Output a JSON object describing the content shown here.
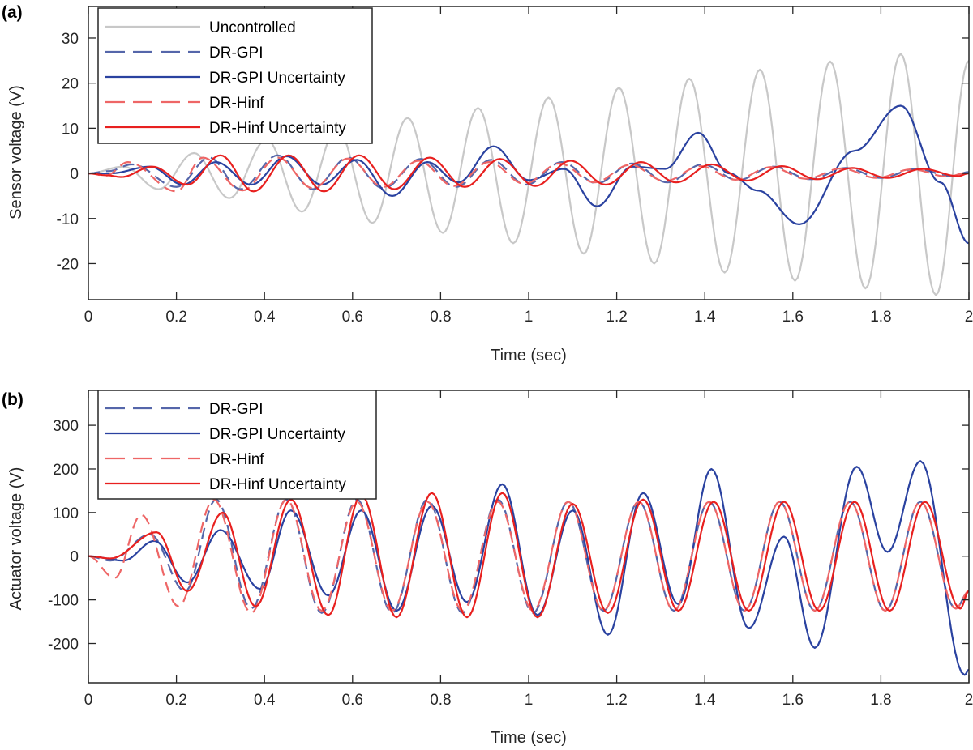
{
  "colors": {
    "uncontrolled": "#c8c8c8",
    "gpi": "#2a42a0",
    "gpi_dashed": "#5566aa",
    "hinf": "#e8201f",
    "hinf_dashed": "#ee6666",
    "axis": "#262626"
  },
  "chart_data": [
    {
      "panel_label": "(a)",
      "type": "line",
      "xlabel": "Time (sec)",
      "ylabel": "Sensor voltage (V)",
      "xlim": [
        0,
        2
      ],
      "ylim": [
        -28,
        37
      ],
      "xticks": [
        0,
        0.2,
        0.4,
        0.6,
        0.8,
        1,
        1.2,
        1.4,
        1.6,
        1.8,
        2
      ],
      "xtick_labels": [
        "0",
        "0.2",
        "0.4",
        "0.6",
        "0.8",
        "1",
        "1.2",
        "1.4",
        "1.6",
        "1.8",
        "2"
      ],
      "yticks": [
        -20,
        -10,
        0,
        10,
        20,
        30
      ],
      "ytick_labels": [
        "-20",
        "-10",
        "0",
        "10",
        "20",
        "30"
      ],
      "grid": false,
      "legend_placement": "top-left",
      "series": [
        {
          "name": "Uncontrolled",
          "style": "solid",
          "color_key": "uncontrolled",
          "peaks": [
            [
              0,
              0
            ],
            [
              0.08,
              1.5
            ],
            [
              0.16,
              -3.5
            ],
            [
              0.24,
              4.5
            ],
            [
              0.32,
              -5.5
            ],
            [
              0.405,
              7.5
            ],
            [
              0.485,
              -8.5
            ],
            [
              0.565,
              10
            ],
            [
              0.645,
              -11
            ],
            [
              0.725,
              12.3
            ],
            [
              0.805,
              -13.2
            ],
            [
              0.885,
              14.5
            ],
            [
              0.965,
              -15.5
            ],
            [
              1.045,
              16.8
            ],
            [
              1.125,
              -17.8
            ],
            [
              1.205,
              19
            ],
            [
              1.285,
              -20
            ],
            [
              1.365,
              21
            ],
            [
              1.445,
              -22
            ],
            [
              1.525,
              23
            ],
            [
              1.605,
              -23.8
            ],
            [
              1.685,
              24.8
            ],
            [
              1.765,
              -25.5
            ],
            [
              1.845,
              26.5
            ],
            [
              1.925,
              -27
            ],
            [
              2.0,
              25
            ]
          ]
        },
        {
          "name": "DR-GPI",
          "style": "dashed",
          "color_key": "gpi_dashed",
          "peaks": [
            [
              0,
              0
            ],
            [
              0.045,
              0.5
            ],
            [
              0.1,
              2
            ],
            [
              0.2,
              -3
            ],
            [
              0.275,
              3.5
            ],
            [
              0.345,
              -3.5
            ],
            [
              0.43,
              4
            ],
            [
              0.51,
              -3.5
            ],
            [
              0.59,
              3.5
            ],
            [
              0.67,
              -3.3
            ],
            [
              0.755,
              3.2
            ],
            [
              0.835,
              -3
            ],
            [
              0.915,
              3
            ],
            [
              0.995,
              -2.5
            ],
            [
              1.075,
              2.5
            ],
            [
              1.155,
              -2.2
            ],
            [
              1.235,
              2.2
            ],
            [
              1.315,
              -2
            ],
            [
              1.395,
              2
            ],
            [
              1.475,
              -1.5
            ],
            [
              1.555,
              1.5
            ],
            [
              1.64,
              -1.3
            ],
            [
              1.72,
              1.2
            ],
            [
              1.8,
              -1
            ],
            [
              1.88,
              1
            ],
            [
              1.96,
              -0.6
            ],
            [
              2.0,
              0.3
            ]
          ]
        },
        {
          "name": "DR-GPI Uncertainty",
          "style": "solid",
          "color_key": "gpi",
          "peaks": [
            [
              0,
              0
            ],
            [
              0.05,
              0
            ],
            [
              0.14,
              1.5
            ],
            [
              0.215,
              -2.5
            ],
            [
              0.29,
              2.5
            ],
            [
              0.37,
              -2.5
            ],
            [
              0.45,
              3.8
            ],
            [
              0.53,
              -2.5
            ],
            [
              0.61,
              3
            ],
            [
              0.69,
              -5
            ],
            [
              0.77,
              2.5
            ],
            [
              0.84,
              -2
            ],
            [
              0.92,
              6
            ],
            [
              1.0,
              -1.5
            ],
            [
              1.08,
              1
            ],
            [
              1.155,
              -7.3
            ],
            [
              1.235,
              1.5
            ],
            [
              1.31,
              1
            ],
            [
              1.385,
              9
            ],
            [
              1.455,
              0
            ],
            [
              1.52,
              -3.8
            ],
            [
              1.615,
              -11.3
            ],
            [
              1.74,
              5
            ],
            [
              1.845,
              15
            ],
            [
              1.935,
              -2
            ],
            [
              2.0,
              -15.5
            ]
          ]
        },
        {
          "name": "DR-Hinf",
          "style": "dashed",
          "color_key": "hinf_dashed",
          "peaks": [
            [
              0,
              0
            ],
            [
              0.04,
              -0.5
            ],
            [
              0.09,
              2.5
            ],
            [
              0.2,
              -4
            ],
            [
              0.26,
              3.5
            ],
            [
              0.35,
              -3.8
            ],
            [
              0.43,
              3.5
            ],
            [
              0.51,
              -3.3
            ],
            [
              0.59,
              3.3
            ],
            [
              0.67,
              -3
            ],
            [
              0.75,
              2.8
            ],
            [
              0.83,
              -2.8
            ],
            [
              0.91,
              2.5
            ],
            [
              0.99,
              -2.3
            ],
            [
              1.07,
              2.2
            ],
            [
              1.15,
              -2
            ],
            [
              1.23,
              1.9
            ],
            [
              1.31,
              -1.7
            ],
            [
              1.39,
              1.6
            ],
            [
              1.47,
              -1.4
            ],
            [
              1.55,
              1.4
            ],
            [
              1.63,
              -1.2
            ],
            [
              1.71,
              1.1
            ],
            [
              1.79,
              -1
            ],
            [
              1.87,
              0.9
            ],
            [
              1.95,
              -0.7
            ],
            [
              2.0,
              0.2
            ]
          ]
        },
        {
          "name": "DR-Hinf Uncertainty",
          "style": "solid",
          "color_key": "hinf",
          "peaks": [
            [
              0,
              0
            ],
            [
              0.04,
              -0.4
            ],
            [
              0.075,
              -0.8
            ],
            [
              0.145,
              1.5
            ],
            [
              0.225,
              -2.5
            ],
            [
              0.3,
              4
            ],
            [
              0.375,
              -4
            ],
            [
              0.455,
              4
            ],
            [
              0.535,
              -4
            ],
            [
              0.615,
              4
            ],
            [
              0.695,
              -3.5
            ],
            [
              0.775,
              3.5
            ],
            [
              0.855,
              -3
            ],
            [
              0.935,
              3.2
            ],
            [
              1.015,
              -2.8
            ],
            [
              1.095,
              2.8
            ],
            [
              1.175,
              -2.5
            ],
            [
              1.255,
              2.5
            ],
            [
              1.335,
              -2
            ],
            [
              1.415,
              2
            ],
            [
              1.495,
              -1.6
            ],
            [
              1.575,
              1.6
            ],
            [
              1.655,
              -1.3
            ],
            [
              1.735,
              1.2
            ],
            [
              1.815,
              -1
            ],
            [
              1.895,
              1
            ],
            [
              1.975,
              -0.6
            ],
            [
              2.0,
              0
            ]
          ]
        }
      ]
    },
    {
      "panel_label": "(b)",
      "type": "line",
      "xlabel": "Time (sec)",
      "ylabel": "Actuator voltage (V)",
      "xlim": [
        0,
        2
      ],
      "ylim": [
        -290,
        380
      ],
      "xticks": [
        0,
        0.2,
        0.4,
        0.6,
        0.8,
        1,
        1.2,
        1.4,
        1.6,
        1.8,
        2
      ],
      "xtick_labels": [
        "0",
        "0.2",
        "0.4",
        "0.6",
        "0.8",
        "1",
        "1.2",
        "1.4",
        "1.6",
        "1.8",
        "2"
      ],
      "yticks": [
        -200,
        -100,
        0,
        100,
        200,
        300
      ],
      "ytick_labels": [
        "-200",
        "-100",
        "0",
        "100",
        "200",
        "300"
      ],
      "grid": false,
      "legend_placement": "top-left",
      "series": [
        {
          "name": "DR-GPI",
          "style": "dashed",
          "color_key": "gpi_dashed",
          "peaks": [
            [
              0,
              0
            ],
            [
              0.05,
              -10
            ],
            [
              0.14,
              50
            ],
            [
              0.22,
              -80
            ],
            [
              0.29,
              130
            ],
            [
              0.37,
              -120
            ],
            [
              0.45,
              130
            ],
            [
              0.53,
              -130
            ],
            [
              0.61,
              130
            ],
            [
              0.69,
              -130
            ],
            [
              0.77,
              130
            ],
            [
              0.85,
              -130
            ],
            [
              0.93,
              130
            ],
            [
              1.01,
              -130
            ],
            [
              1.09,
              125
            ],
            [
              1.17,
              -125
            ],
            [
              1.25,
              125
            ],
            [
              1.33,
              -125
            ],
            [
              1.41,
              125
            ],
            [
              1.49,
              -125
            ],
            [
              1.57,
              125
            ],
            [
              1.65,
              -125
            ],
            [
              1.73,
              125
            ],
            [
              1.81,
              -125
            ],
            [
              1.89,
              125
            ],
            [
              1.97,
              -120
            ],
            [
              2.0,
              -80
            ]
          ]
        },
        {
          "name": "DR-GPI Uncertainty",
          "style": "solid",
          "color_key": "gpi",
          "peaks": [
            [
              0,
              0
            ],
            [
              0.08,
              -10
            ],
            [
              0.15,
              35
            ],
            [
              0.225,
              -60
            ],
            [
              0.3,
              60
            ],
            [
              0.39,
              -75
            ],
            [
              0.46,
              105
            ],
            [
              0.545,
              -90
            ],
            [
              0.62,
              105
            ],
            [
              0.7,
              -125
            ],
            [
              0.78,
              115
            ],
            [
              0.86,
              -105
            ],
            [
              0.94,
              165
            ],
            [
              1.02,
              -135
            ],
            [
              1.1,
              105
            ],
            [
              1.18,
              -180
            ],
            [
              1.26,
              145
            ],
            [
              1.34,
              -110
            ],
            [
              1.415,
              200
            ],
            [
              1.5,
              -165
            ],
            [
              1.58,
              45
            ],
            [
              1.65,
              -210
            ],
            [
              1.745,
              205
            ],
            [
              1.815,
              10
            ],
            [
              1.89,
              218
            ],
            [
              1.99,
              -272
            ],
            [
              2.0,
              -260
            ]
          ]
        },
        {
          "name": "DR-Hinf",
          "style": "dashed",
          "color_key": "hinf_dashed",
          "peaks": [
            [
              0,
              0
            ],
            [
              0.06,
              -50
            ],
            [
              0.12,
              95
            ],
            [
              0.205,
              -115
            ],
            [
              0.285,
              130
            ],
            [
              0.37,
              -130
            ],
            [
              0.45,
              130
            ],
            [
              0.53,
              -125
            ],
            [
              0.61,
              125
            ],
            [
              0.69,
              -125
            ],
            [
              0.77,
              125
            ],
            [
              0.85,
              -125
            ],
            [
              0.93,
              125
            ],
            [
              1.01,
              -125
            ],
            [
              1.09,
              125
            ],
            [
              1.17,
              -125
            ],
            [
              1.25,
              125
            ],
            [
              1.33,
              -125
            ],
            [
              1.41,
              125
            ],
            [
              1.49,
              -125
            ],
            [
              1.57,
              125
            ],
            [
              1.65,
              -125
            ],
            [
              1.73,
              125
            ],
            [
              1.81,
              -125
            ],
            [
              1.89,
              125
            ],
            [
              1.97,
              -120
            ],
            [
              2.0,
              -80
            ]
          ]
        },
        {
          "name": "DR-Hinf Uncertainty",
          "style": "solid",
          "color_key": "hinf",
          "peaks": [
            [
              0,
              0
            ],
            [
              0.05,
              -5
            ],
            [
              0.155,
              55
            ],
            [
              0.225,
              -80
            ],
            [
              0.305,
              100
            ],
            [
              0.38,
              -115
            ],
            [
              0.46,
              130
            ],
            [
              0.545,
              -135
            ],
            [
              0.62,
              140
            ],
            [
              0.7,
              -140
            ],
            [
              0.78,
              145
            ],
            [
              0.86,
              -140
            ],
            [
              0.94,
              145
            ],
            [
              1.02,
              -140
            ],
            [
              1.1,
              120
            ],
            [
              1.18,
              -130
            ],
            [
              1.26,
              130
            ],
            [
              1.34,
              -125
            ],
            [
              1.42,
              125
            ],
            [
              1.5,
              -125
            ],
            [
              1.58,
              125
            ],
            [
              1.66,
              -125
            ],
            [
              1.74,
              125
            ],
            [
              1.82,
              -125
            ],
            [
              1.9,
              125
            ],
            [
              1.98,
              -120
            ],
            [
              2.0,
              -80
            ]
          ]
        }
      ]
    }
  ]
}
